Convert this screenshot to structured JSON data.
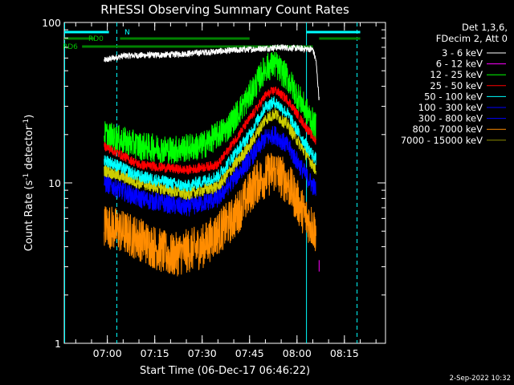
{
  "chart_data": {
    "type": "line",
    "title": "RHESSI Observing Summary Count Rates",
    "ylabel_main": "Count Rate (s",
    "ylabel_sup1": "-1",
    "ylabel_mid": " detector",
    "ylabel_sup2": "-1",
    "ylabel_end": ")",
    "xlabel": "Start Time (06-Dec-17 06:46:22)",
    "y_scale": "log",
    "ylim": [
      1,
      100
    ],
    "xlim": [
      "06:46:22",
      "08:28:00"
    ],
    "y_ticks": [
      "1",
      "10",
      "100"
    ],
    "x_ticks": [
      {
        "label": "07:00",
        "t": "07:00"
      },
      {
        "label": "07:15",
        "t": "07:15"
      },
      {
        "label": "07:30",
        "t": "07:30"
      },
      {
        "label": "07:45",
        "t": "07:45"
      },
      {
        "label": "08:00",
        "t": "08:00"
      },
      {
        "label": "08:15",
        "t": "08:15"
      }
    ],
    "legend_header": [
      "Det 1,3,6,",
      "FDecim 2, Att 0"
    ],
    "legend_placement": "right",
    "series": [
      {
        "name": "3 - 6 keV",
        "color": "#ffffff",
        "points": [
          [
            "06:59",
            58
          ],
          [
            "07:05",
            62
          ],
          [
            "07:20",
            63
          ],
          [
            "07:40",
            67
          ],
          [
            "07:55",
            70
          ],
          [
            "08:05",
            68
          ],
          [
            "08:06",
            58
          ],
          [
            "08:07",
            33
          ]
        ]
      },
      {
        "name": "6 - 12 keV",
        "color": "#ff00ff",
        "points": [
          [
            "08:07",
            3
          ]
        ]
      },
      {
        "name": "12 - 25 keV",
        "color": "#00ff00",
        "points": [
          [
            "06:59",
            20
          ],
          [
            "07:10",
            17
          ],
          [
            "07:20",
            16
          ],
          [
            "07:30",
            17
          ],
          [
            "07:38",
            22
          ],
          [
            "07:45",
            35
          ],
          [
            "07:50",
            52
          ],
          [
            "07:53",
            55
          ],
          [
            "07:57",
            45
          ],
          [
            "08:03",
            28
          ],
          [
            "08:06",
            22
          ]
        ]
      },
      {
        "name": "25 - 50 keV",
        "color": "#ff0000",
        "points": [
          [
            "06:59",
            17
          ],
          [
            "07:10",
            13
          ],
          [
            "07:25",
            12
          ],
          [
            "07:35",
            13
          ],
          [
            "07:45",
            25
          ],
          [
            "07:50",
            35
          ],
          [
            "07:53",
            38
          ],
          [
            "07:57",
            33
          ],
          [
            "08:03",
            22
          ],
          [
            "08:06",
            18
          ]
        ]
      },
      {
        "name": "50 - 100 keV",
        "color": "#00ffff",
        "points": [
          [
            "06:59",
            14
          ],
          [
            "07:10",
            11
          ],
          [
            "07:25",
            9.5
          ],
          [
            "07:35",
            11
          ],
          [
            "07:45",
            20
          ],
          [
            "07:50",
            30
          ],
          [
            "07:53",
            32
          ],
          [
            "07:57",
            27
          ],
          [
            "08:03",
            17
          ],
          [
            "08:06",
            14
          ]
        ]
      },
      {
        "name": "100 - 300 keV",
        "color": "#0000ff",
        "points": []
      },
      {
        "name": "300 - 800 keV",
        "color": "#0000ff",
        "points": [
          [
            "06:59",
            10
          ],
          [
            "07:10",
            8
          ],
          [
            "07:25",
            7
          ],
          [
            "07:35",
            8
          ],
          [
            "07:45",
            14
          ],
          [
            "07:50",
            19
          ],
          [
            "07:53",
            20
          ],
          [
            "07:57",
            17
          ],
          [
            "08:03",
            11
          ],
          [
            "08:06",
            9
          ]
        ]
      },
      {
        "name": "800 - 7000 keV",
        "color": "#ff8c00",
        "points": [
          [
            "06:59",
            5.5
          ],
          [
            "07:10",
            4.5
          ],
          [
            "07:20",
            3.5
          ],
          [
            "07:30",
            4
          ],
          [
            "07:40",
            6
          ],
          [
            "07:47",
            10
          ],
          [
            "07:53",
            12
          ],
          [
            "07:57",
            10
          ],
          [
            "08:03",
            6
          ],
          [
            "08:06",
            5
          ]
        ]
      },
      {
        "name": "7000 - 15000 keV",
        "color": "#8b8b00",
        "points": []
      }
    ],
    "series_overlays": [
      {
        "series": "50 - 100 keV",
        "color": "#cccc00",
        "points": [
          [
            "06:59",
            12
          ],
          [
            "07:10",
            10
          ],
          [
            "07:25",
            8.5
          ],
          [
            "07:35",
            9.5
          ],
          [
            "07:45",
            17
          ],
          [
            "07:50",
            25
          ],
          [
            "07:53",
            27
          ],
          [
            "07:57",
            23
          ],
          [
            "08:03",
            15
          ],
          [
            "08:06",
            12
          ]
        ]
      }
    ],
    "annotations": {
      "n_label": "N",
      "rd0_label": "RD0",
      "rd6_label": "RD6",
      "n_segments": [
        [
          "06:46:22",
          "07:00:30"
        ],
        [
          "08:03",
          "08:20"
        ]
      ],
      "rd0_segments": [
        [
          "06:46:22",
          "06:56"
        ],
        [
          "07:04",
          "07:45"
        ],
        [
          "08:07",
          "08:20"
        ]
      ],
      "rd6_segments": [
        [
          "06:52",
          "08:05"
        ]
      ],
      "cyan_lines": [
        {
          "t": "06:46:30",
          "style": "solid"
        },
        {
          "t": "07:03",
          "style": "dashed"
        },
        {
          "t": "08:03",
          "style": "solid"
        },
        {
          "t": "08:19",
          "style": "dashed"
        }
      ]
    },
    "timestamp": "2-Sep-2022 10:32"
  }
}
